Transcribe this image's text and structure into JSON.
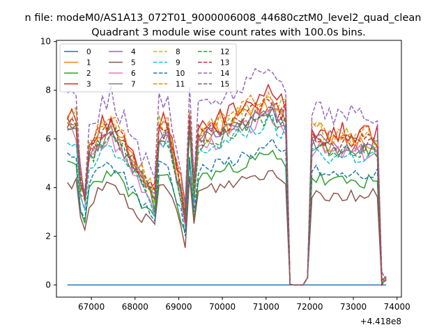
{
  "figure": {
    "suptitle": "n file: modeM0/AS1A13_072T01_9000006008_44680cztM0_level2_quad_clean"
  },
  "chart_data": {
    "type": "line",
    "title": "Quadrant 3 module wise count rates with 100.0s bins.",
    "xlabel": "",
    "ylabel": "",
    "x_offset_label": "+4.418e8",
    "xlim": [
      66200,
      74100
    ],
    "ylim": [
      -0.5,
      10.05
    ],
    "xticks": [
      67000,
      68000,
      69000,
      70000,
      71000,
      72000,
      73000,
      74000
    ],
    "yticks": [
      0,
      2,
      4,
      6,
      8,
      10
    ],
    "grid": false,
    "legend": {
      "position": "top-left",
      "columns": 4
    },
    "x_range": [
      66450,
      73750
    ],
    "gap": [
      71600,
      71900
    ],
    "series": [
      {
        "name": "0",
        "color": "#1f77b4",
        "dash": false,
        "base": 0.0,
        "variation": 0.0,
        "seed": 0
      },
      {
        "name": "1",
        "color": "#ff7f0e",
        "dash": false,
        "base": 6.4,
        "variation": 0.8,
        "seed": 11
      },
      {
        "name": "2",
        "color": "#2ca02c",
        "dash": false,
        "base": 4.6,
        "variation": 0.6,
        "seed": 22
      },
      {
        "name": "3",
        "color": "#d62728",
        "dash": false,
        "base": 6.8,
        "variation": 0.9,
        "seed": 33
      },
      {
        "name": "4",
        "color": "#9467bd",
        "dash": false,
        "base": 6.2,
        "variation": 0.7,
        "seed": 44
      },
      {
        "name": "5",
        "color": "#8c564b",
        "dash": false,
        "base": 4.0,
        "variation": 0.6,
        "seed": 55
      },
      {
        "name": "6",
        "color": "#e377c2",
        "dash": false,
        "base": 5.9,
        "variation": 0.7,
        "seed": 66
      },
      {
        "name": "7",
        "color": "#7f7f7f",
        "dash": false,
        "base": 6.1,
        "variation": 0.7,
        "seed": 77
      },
      {
        "name": "8",
        "color": "#bcbd22",
        "dash": true,
        "base": 6.6,
        "variation": 0.8,
        "seed": 88
      },
      {
        "name": "9",
        "color": "#17becf",
        "dash": true,
        "base": 5.7,
        "variation": 0.7,
        "seed": 99
      },
      {
        "name": "10",
        "color": "#1f77b4",
        "dash": true,
        "base": 4.9,
        "variation": 0.6,
        "seed": 101
      },
      {
        "name": "11",
        "color": "#ff7f0e",
        "dash": true,
        "base": 6.7,
        "variation": 0.8,
        "seed": 111
      },
      {
        "name": "12",
        "color": "#2ca02c",
        "dash": true,
        "base": 6.0,
        "variation": 0.7,
        "seed": 121
      },
      {
        "name": "13",
        "color": "#d62728",
        "dash": true,
        "base": 6.5,
        "variation": 0.8,
        "seed": 131
      },
      {
        "name": "14",
        "color": "#9467bd",
        "dash": true,
        "base": 7.6,
        "variation": 0.9,
        "seed": 141
      },
      {
        "name": "15",
        "color": "#8c564b",
        "dash": true,
        "base": 6.3,
        "variation": 0.8,
        "seed": 151
      }
    ]
  }
}
